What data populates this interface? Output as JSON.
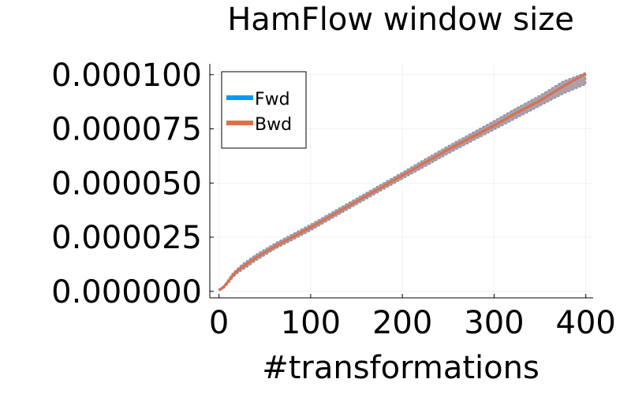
{
  "chart_data": {
    "type": "line",
    "title": "HamFlow window size",
    "xlabel": "#transformations",
    "ylabel": "",
    "xlim": [
      -10,
      408
    ],
    "ylim": [
      -3e-06,
      0.000105
    ],
    "x_ticks": [
      0,
      100,
      200,
      300,
      400
    ],
    "x_tick_labels": [
      "0",
      "100",
      "200",
      "300",
      "400"
    ],
    "y_ticks": [
      0,
      2.5e-05,
      5e-05,
      7.5e-05,
      0.0001
    ],
    "y_tick_labels": [
      "0.000000",
      "0.000025",
      "0.000050",
      "0.000075",
      "0.000100"
    ],
    "grid": true,
    "legend_position": "top-left",
    "colors": {
      "fwd": "#009af9",
      "bwd": "#e26f46",
      "band": "#9e8f9f",
      "band_edge": "#7f8796"
    },
    "x": [
      0,
      5,
      10,
      15,
      20,
      25,
      30,
      40,
      50,
      60,
      80,
      100,
      125,
      150,
      175,
      200,
      225,
      250,
      275,
      300,
      325,
      350,
      375,
      400
    ],
    "series": [
      {
        "name": "Fwd",
        "values": [
          5e-07,
          2e-06,
          4.5e-06,
          7.5e-06,
          9.5e-06,
          1.1e-05,
          1.25e-05,
          1.55e-05,
          1.8e-05,
          2.05e-05,
          2.5e-05,
          2.95e-05,
          3.55e-05,
          4.15e-05,
          4.75e-05,
          5.35e-05,
          5.95e-05,
          6.55e-05,
          7.1e-05,
          7.65e-05,
          8.25e-05,
          8.8e-05,
          9.45e-05,
          0.0001005
        ]
      },
      {
        "name": "Bwd",
        "values": [
          5e-07,
          2e-06,
          4.5e-06,
          7.5e-06,
          9.5e-06,
          1.1e-05,
          1.25e-05,
          1.55e-05,
          1.8e-05,
          2.05e-05,
          2.5e-05,
          2.95e-05,
          3.55e-05,
          4.15e-05,
          4.75e-05,
          5.35e-05,
          5.95e-05,
          6.55e-05,
          7.1e-05,
          7.65e-05,
          8.25e-05,
          8.8e-05,
          9.45e-05,
          0.0001005
        ]
      }
    ],
    "band": {
      "upper": [
        1e-06,
        2.5e-06,
        5.5e-06,
        8.5e-06,
        1.05e-05,
        1.25e-05,
        1.4e-05,
        1.7e-05,
        1.95e-05,
        2.2e-05,
        2.65e-05,
        3.1e-05,
        3.7e-05,
        4.3e-05,
        4.9e-05,
        5.5e-05,
        6.12e-05,
        6.72e-05,
        7.3e-05,
        7.88e-05,
        8.48e-05,
        9.05e-05,
        9.7e-05,
        0.000101
      ],
      "lower": [
        2e-07,
        1.2e-06,
        3.5e-06,
        6.2e-06,
        8.2e-06,
        9.7e-06,
        1.1e-05,
        1.4e-05,
        1.66e-05,
        1.92e-05,
        2.36e-05,
        2.8e-05,
        3.4e-05,
        4e-05,
        4.6e-05,
        5.18e-05,
        5.76e-05,
        6.35e-05,
        6.9e-05,
        7.45e-05,
        8e-05,
        8.55e-05,
        9.1e-05,
        9.55e-05
      ]
    }
  }
}
